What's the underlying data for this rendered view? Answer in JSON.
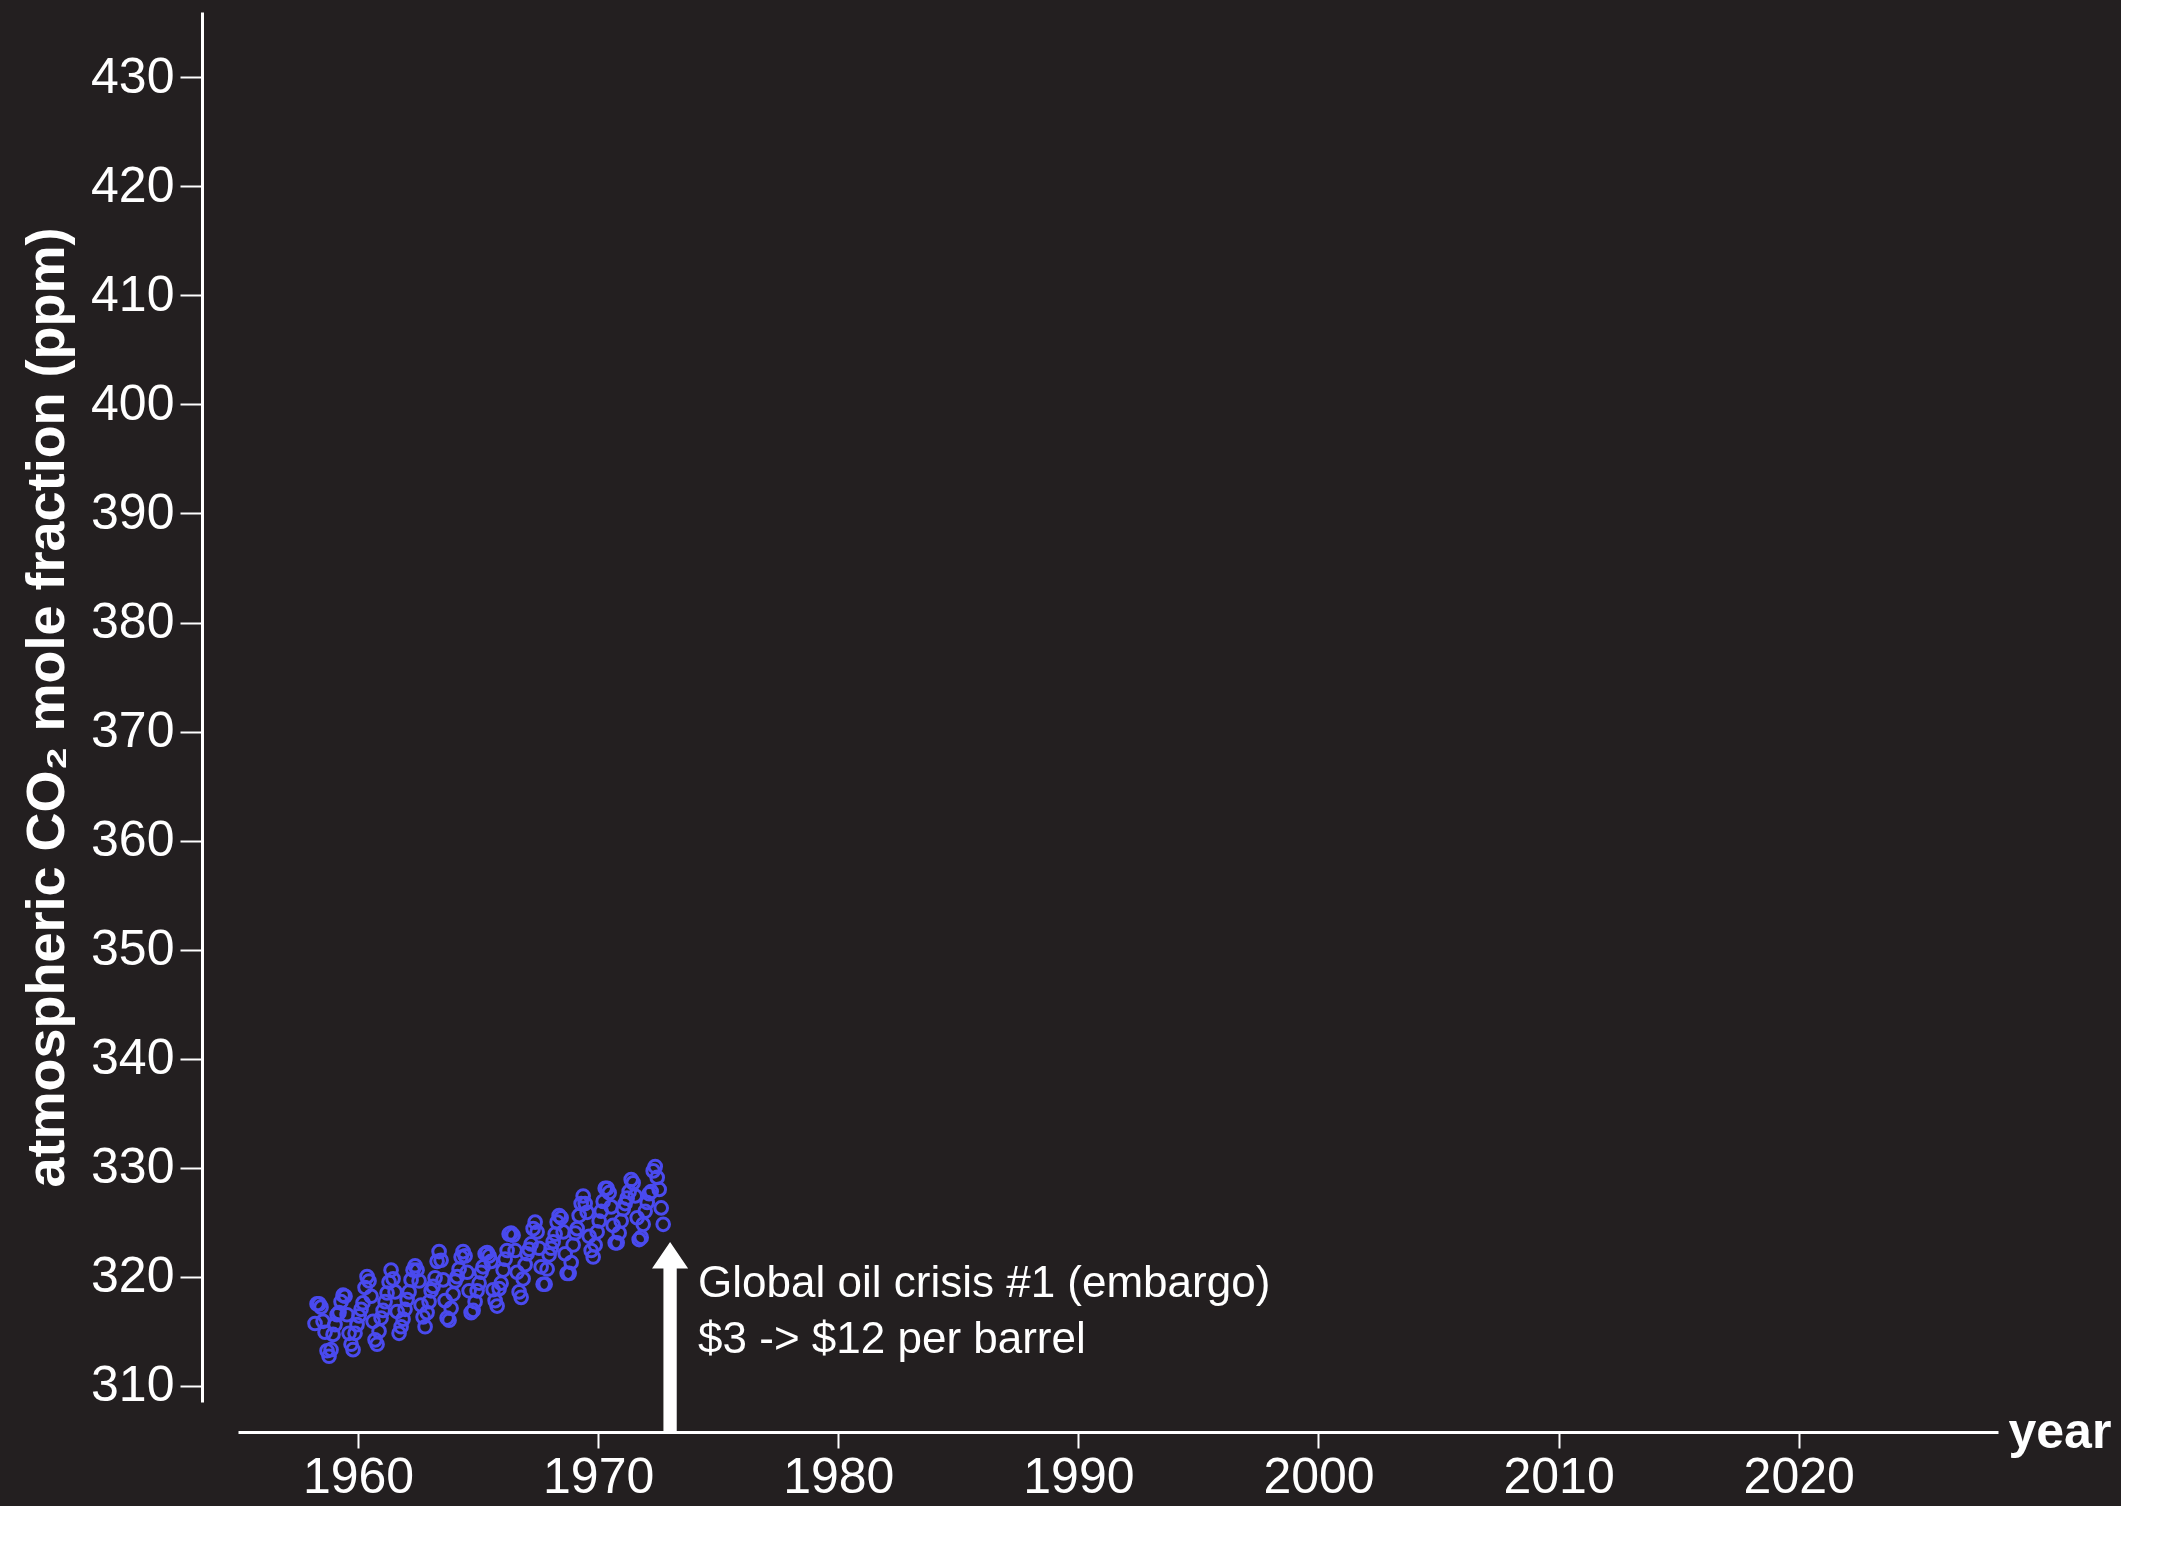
{
  "chart_data": {
    "type": "scatter",
    "xlabel": "year",
    "ylabel": "atmospheric CO₂ mole fraction (ppm)",
    "xlim": [
      1955,
      2028.3
    ],
    "ylim": [
      308.5,
      436
    ],
    "xticks": [
      1960,
      1970,
      1980,
      1990,
      2000,
      2010,
      2020
    ],
    "yticks": [
      310,
      320,
      330,
      340,
      350,
      360,
      370,
      380,
      390,
      400,
      410,
      420,
      430
    ],
    "grid": false,
    "marker": "circle",
    "annotations": [
      "Global oil crisis #1 (embargo)\n$3 -> $12 per barrel"
    ],
    "series": [
      {
        "color": "#4a4aee",
        "x": [
          1958.208,
          1958.292,
          1958.375,
          1958.458,
          1958.542,
          1958.625,
          1958.708,
          1958.792,
          1958.875,
          1958.958,
          1959.042,
          1959.125,
          1959.208,
          1959.292,
          1959.375,
          1959.458,
          1959.542,
          1959.625,
          1959.708,
          1959.792,
          1959.875,
          1959.958,
          1960.042,
          1960.125,
          1960.208,
          1960.292,
          1960.375,
          1960.458,
          1960.542,
          1960.625,
          1960.708,
          1960.792,
          1960.875,
          1960.958,
          1961.042,
          1961.125,
          1961.208,
          1961.292,
          1961.375,
          1961.458,
          1961.542,
          1961.625,
          1961.708,
          1961.792,
          1961.875,
          1961.958,
          1962.042,
          1962.125,
          1962.208,
          1962.292,
          1962.375,
          1962.458,
          1962.542,
          1962.625,
          1962.708,
          1962.792,
          1962.875,
          1962.958,
          1963.042,
          1963.125,
          1963.208,
          1963.292,
          1963.375,
          1963.458,
          1963.542,
          1963.625,
          1963.708,
          1963.792,
          1963.875,
          1963.958,
          1964.042,
          1964.125,
          1964.208,
          1964.292,
          1964.375,
          1964.458,
          1964.542,
          1964.625,
          1964.708,
          1964.792,
          1964.875,
          1964.958,
          1965.042,
          1965.125,
          1965.208,
          1965.292,
          1965.375,
          1965.458,
          1965.542,
          1965.625,
          1965.708,
          1965.792,
          1965.875,
          1965.958,
          1966.042,
          1966.125,
          1966.208,
          1966.292,
          1966.375,
          1966.458,
          1966.542,
          1966.625,
          1966.708,
          1966.792,
          1966.875,
          1966.958,
          1967.042,
          1967.125,
          1967.208,
          1967.292,
          1967.375,
          1967.458,
          1967.542,
          1967.625,
          1967.708,
          1967.792,
          1967.875,
          1967.958,
          1968.042,
          1968.125,
          1968.208,
          1968.292,
          1968.375,
          1968.458,
          1968.542,
          1968.625,
          1968.708,
          1968.792,
          1968.875,
          1968.958,
          1969.042,
          1969.125,
          1969.208,
          1969.292,
          1969.375,
          1969.458,
          1969.542,
          1969.625,
          1969.708,
          1969.792,
          1969.875,
          1969.958,
          1970.042,
          1970.125,
          1970.208,
          1970.292,
          1970.375,
          1970.458,
          1970.542,
          1970.625,
          1970.708,
          1970.792,
          1970.875,
          1970.958,
          1971.042,
          1971.125,
          1971.208,
          1971.292,
          1971.375,
          1971.458,
          1971.542,
          1971.625,
          1971.708,
          1971.792,
          1971.875,
          1971.958,
          1972.042,
          1972.125,
          1972.208,
          1972.292,
          1972.375,
          1972.458,
          1972.542,
          1972.625,
          1972.708
        ],
        "values": [
          315.7,
          317.5,
          317.5,
          317.2,
          315.9,
          314.9,
          313.2,
          312.7,
          313.3,
          314.7,
          315.6,
          316.5,
          316.7,
          317.7,
          318.3,
          318.2,
          316.5,
          314.8,
          313.8,
          313.3,
          314.8,
          315.6,
          316.4,
          317.0,
          317.6,
          319.0,
          320.0,
          319.6,
          318.2,
          315.9,
          314.2,
          313.8,
          315.0,
          316.2,
          316.9,
          317.7,
          318.5,
          319.5,
          320.6,
          319.8,
          318.6,
          316.8,
          314.8,
          315.4,
          316.1,
          317.0,
          317.9,
          318.6,
          319.7,
          320.6,
          321.0,
          320.6,
          319.6,
          317.4,
          316.3,
          315.4,
          316.7,
          317.7,
          318.7,
          319.1,
          319.9,
          321.4,
          322.3,
          321.5,
          319.7,
          317.8,
          316.2,
          316.0,
          317.1,
          318.4,
          319.6,
          320.0,
          320.7,
          321.8,
          322.3,
          321.9,
          320.4,
          318.7,
          316.7,
          316.9,
          317.7,
          318.7,
          319.4,
          320.4,
          320.9,
          322.1,
          322.2,
          321.9,
          321.4,
          318.8,
          317.8,
          317.3,
          318.9,
          319.4,
          320.6,
          321.6,
          322.4,
          323.9,
          324.0,
          323.8,
          322.4,
          320.4,
          318.6,
          318.1,
          319.8,
          321.1,
          322.1,
          322.5,
          323.0,
          324.4,
          325.0,
          324.1,
          322.6,
          320.9,
          319.3,
          319.3,
          320.7,
          322.0,
          322.6,
          323.2,
          323.9,
          325.0,
          325.6,
          325.4,
          324.1,
          322.1,
          320.3,
          320.3,
          321.3,
          322.9,
          324.0,
          324.4,
          325.6,
          326.7,
          327.4,
          326.7,
          325.9,
          323.7,
          322.4,
          321.8,
          322.9,
          324.1,
          325.1,
          326.0,
          326.9,
          328.1,
          328.1,
          327.7,
          326.4,
          324.7,
          323.1,
          323.1,
          324.0,
          325.1,
          326.2,
          326.7,
          327.2,
          327.8,
          328.9,
          328.6,
          327.4,
          325.4,
          323.4,
          323.6,
          324.8,
          326.0,
          326.8,
          327.6,
          327.8,
          329.7,
          330.1,
          329.1,
          328.0,
          326.3,
          324.8
        ]
      }
    ]
  }
}
